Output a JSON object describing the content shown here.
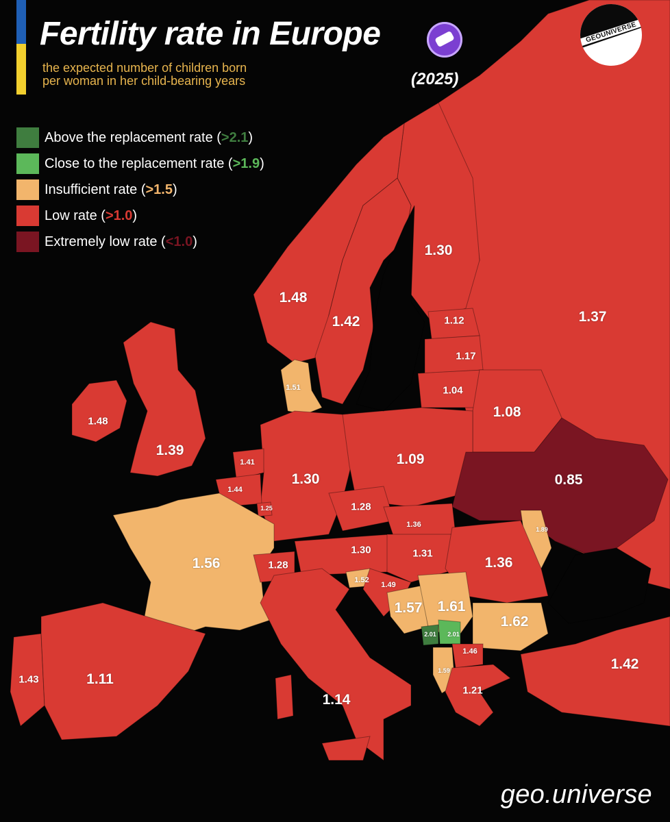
{
  "header": {
    "title": "Fertility rate in Europe",
    "subtitle": "the expected number of children born\nper woman in her child-bearing years",
    "year": "(2025)"
  },
  "brand": {
    "logo_text": "GEOUNIVERSE",
    "credit": "geo.universe"
  },
  "colors": {
    "above": "#3f7d3f",
    "close": "#5cb85a",
    "insufficient": "#f2b56c",
    "low": "#d93a33",
    "extreme": "#7a1522",
    "sea": "#050505",
    "flag_blue": "#1f5fb5",
    "flag_yellow": "#f2cf2e"
  },
  "legend": [
    {
      "label": "Above the replacement rate (",
      "threshold": ">2.1",
      "close": ")",
      "color": "#3f7d3f"
    },
    {
      "label": "Close to the replacement rate (",
      "threshold": ">1.9",
      "close": ")",
      "color": "#5cb85a"
    },
    {
      "label": "Insufficient rate (",
      "threshold": ">1.5",
      "close": ")",
      "color": "#f2b56c"
    },
    {
      "label": "Low rate (",
      "threshold": ">1.0",
      "close": ")",
      "color": "#d93a33"
    },
    {
      "label": "Extremely low rate (",
      "threshold": "<1.0",
      "close": ")",
      "color": "#7a1522"
    }
  ],
  "map_labels": {
    "finland": "1.30",
    "norway": "1.48",
    "sweden": "1.42",
    "russia": "1.37",
    "estonia": "1.12",
    "latvia": "1.17",
    "lithuania": "1.04",
    "belarus": "1.08",
    "denmark": "1.51",
    "ireland": "1.48",
    "uk": "1.39",
    "netherlands": "1.41",
    "belgium": "1.44",
    "luxembourg": "1.25",
    "germany": "1.30",
    "poland": "1.09",
    "ukraine": "0.85",
    "czechia": "1.28",
    "slovakia": "1.36",
    "moldova": "1.89",
    "france": "1.56",
    "switzerland": "1.28",
    "austria": "1.30",
    "hungary": "1.31",
    "romania": "1.36",
    "slovenia": "1.52",
    "croatia": "1.49",
    "bosnia": "1.57",
    "serbia": "1.61",
    "bulgaria": "1.62",
    "montenegro": "2.01",
    "kosovo": "2.01",
    "north_macedonia": "1.46",
    "albania": "1.59",
    "greece": "1.21",
    "turkey": "1.42",
    "portugal": "1.43",
    "spain": "1.11",
    "italy": "1.14"
  }
}
